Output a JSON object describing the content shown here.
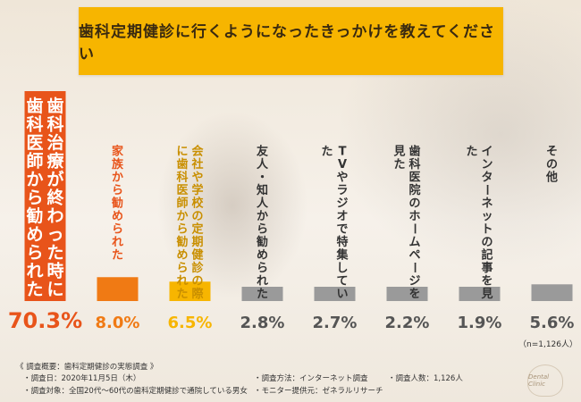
{
  "header": {
    "title": "歯科定期健診に行くようになったきっかけを教えてください"
  },
  "chart_data": {
    "type": "bar",
    "categories": [
      "歯科治療が終わった時に歯科医師から勧められた",
      "家族から勧められた",
      "会社や学校の定期健診の際に歯科医師から勧められた",
      "友人・知人から勧められた",
      "TVやラジオで特集していた",
      "歯科医院のホームページを見た",
      "インターネットの記事を見た",
      "その他"
    ],
    "values": [
      70.3,
      8.0,
      6.5,
      2.8,
      2.7,
      2.2,
      1.9,
      5.6
    ],
    "value_labels": [
      "70.3%",
      "8.0%",
      "6.5%",
      "2.8%",
      "2.7%",
      "2.2%",
      "1.9%",
      "5.6%"
    ],
    "colors": [
      "#e8541a",
      "#f07a14",
      "#f7b500",
      "#9a9a9a",
      "#9a9a9a",
      "#9a9a9a",
      "#9a9a9a",
      "#9a9a9a"
    ],
    "text_colors": [
      "#e8541a",
      "#f07a14",
      "#f7b500",
      "#555555",
      "#555555",
      "#555555",
      "#555555",
      "#555555"
    ]
  },
  "notes": {
    "heading": "《 調査概要：歯科定期健診の実態調査 》",
    "date": "・調査日：2020年11月5日（木）",
    "target": "・調査対象：全国20代〜60代の歯科定期健診で通院している男女",
    "method": "・調査方法：インターネット調査",
    "provider": "・モニター提供元：ゼネラルリサーチ",
    "count": "・調査人数：1,126人"
  },
  "sample_size": "（n=1,126人）",
  "logo_text": "Dental Clinic"
}
